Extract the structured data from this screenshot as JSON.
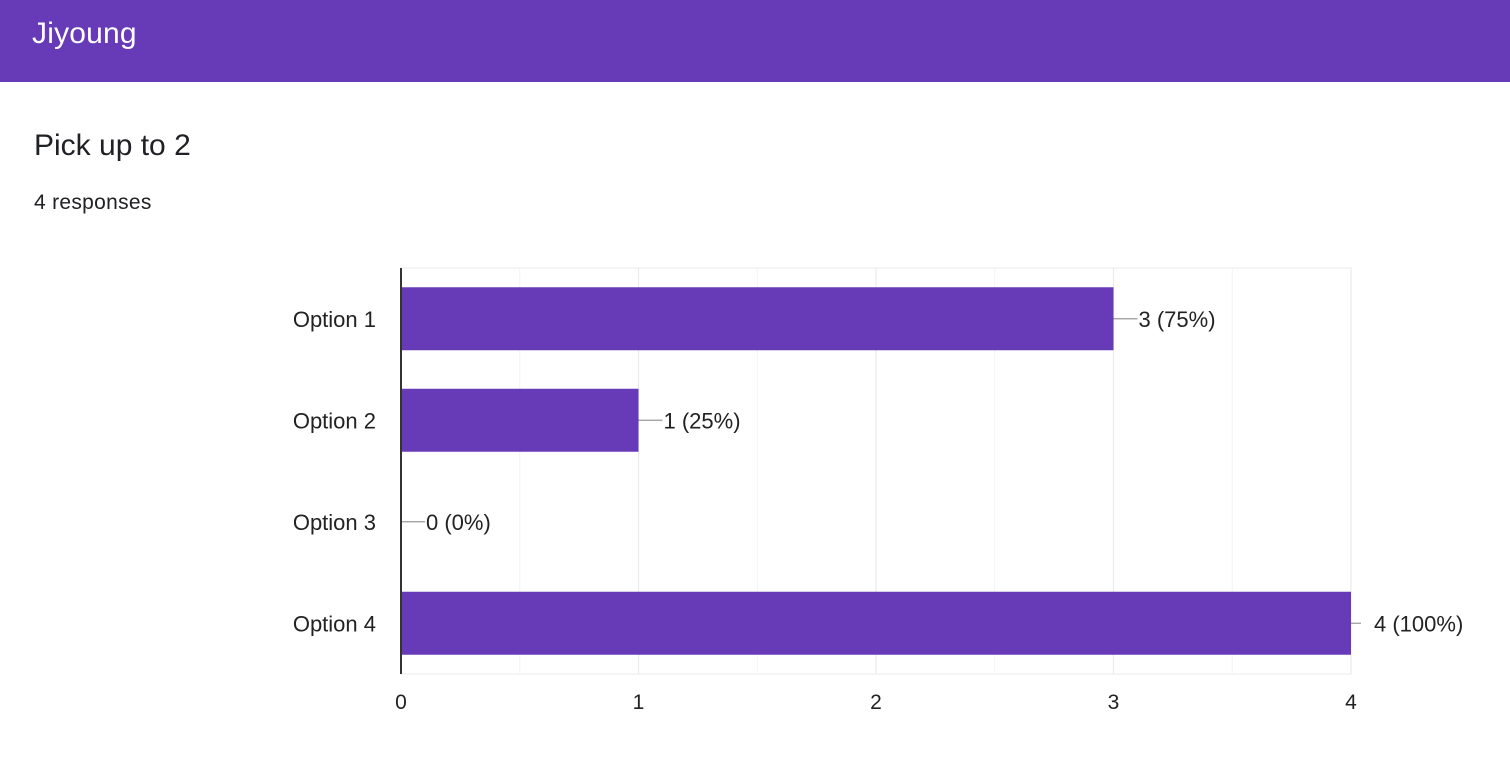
{
  "header": {
    "title": "Jiyoung"
  },
  "question": {
    "title": "Pick up to 2",
    "responses": "4 responses"
  },
  "colors": {
    "brand": "#673ab7",
    "bar": "#673ab7",
    "grid": "#ebebeb",
    "axis": "#333333",
    "leader": "#999999"
  },
  "chart_data": {
    "type": "bar",
    "orientation": "horizontal",
    "categories": [
      "Option 1",
      "Option 2",
      "Option 3",
      "Option 4"
    ],
    "values": [
      3,
      1,
      0,
      4
    ],
    "data_labels": [
      "3 (75%)",
      "1 (25%)",
      "0 (0%)",
      "4 (100%)"
    ],
    "xlim": [
      0,
      4
    ],
    "x_ticks": [
      "0",
      "1",
      "2",
      "3",
      "4"
    ],
    "grid": true,
    "minor_grid": true,
    "legend": "none"
  }
}
